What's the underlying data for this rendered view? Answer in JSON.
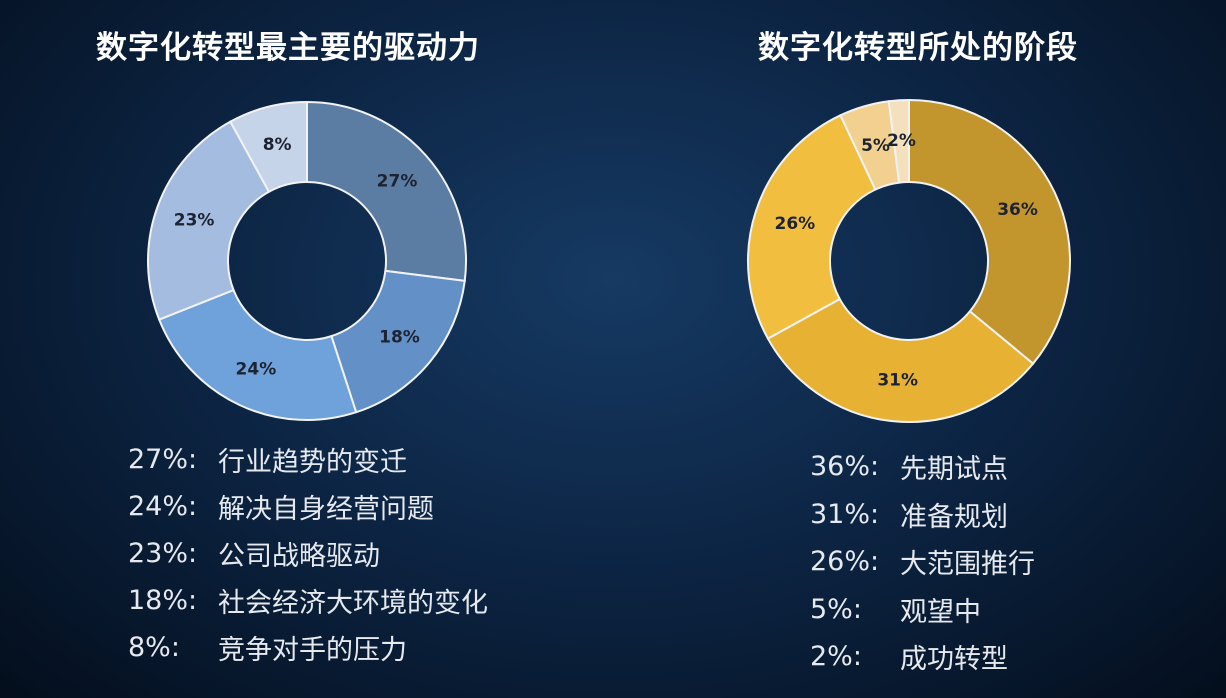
{
  "chart_data": [
    {
      "type": "pie",
      "title": "数字化转型最主要的驱动力",
      "categories": [
        "行业趋势的变迁",
        "社会经济大环境的变化",
        "解决自身经营问题",
        "公司战略驱动",
        "竞争对手的压力"
      ],
      "values": [
        27,
        18,
        24,
        23,
        8
      ],
      "slice_labels": [
        "27%",
        "18%",
        "24%",
        "23%",
        "8%"
      ],
      "colors": [
        "#5b7ca3",
        "#6390c7",
        "#6fa1db",
        "#a3bce0",
        "#c6d4ea"
      ],
      "legend": [
        {
          "pct": "27%:",
          "text": "行业趋势的变迁"
        },
        {
          "pct": "24%:",
          "text": "解决自身经营问题"
        },
        {
          "pct": "23%:",
          "text": "公司战略驱动"
        },
        {
          "pct": "18%:",
          "text": "社会经济大环境的变化"
        },
        {
          "pct": "8%:",
          "text": "竞争对手的压力"
        }
      ]
    },
    {
      "type": "pie",
      "title": "数字化转型所处的阶段",
      "categories": [
        "先期试点",
        "准备规划",
        "大范围推行",
        "观望中",
        "成功转型"
      ],
      "values": [
        36,
        31,
        26,
        5,
        2
      ],
      "slice_labels": [
        "36%",
        "31%",
        "26%",
        "5%",
        "2%"
      ],
      "colors": [
        "#c3952d",
        "#e7b234",
        "#f1be40",
        "#f2d08f",
        "#f4e0bd"
      ],
      "legend": [
        {
          "pct": "36%:",
          "text": "先期试点"
        },
        {
          "pct": "31%:",
          "text": "准备规划"
        },
        {
          "pct": "26%:",
          "text": "大范围推行"
        },
        {
          "pct": "5%:",
          "text": "观望中"
        },
        {
          "pct": "2%:",
          "text": "成功转型"
        }
      ]
    }
  ]
}
